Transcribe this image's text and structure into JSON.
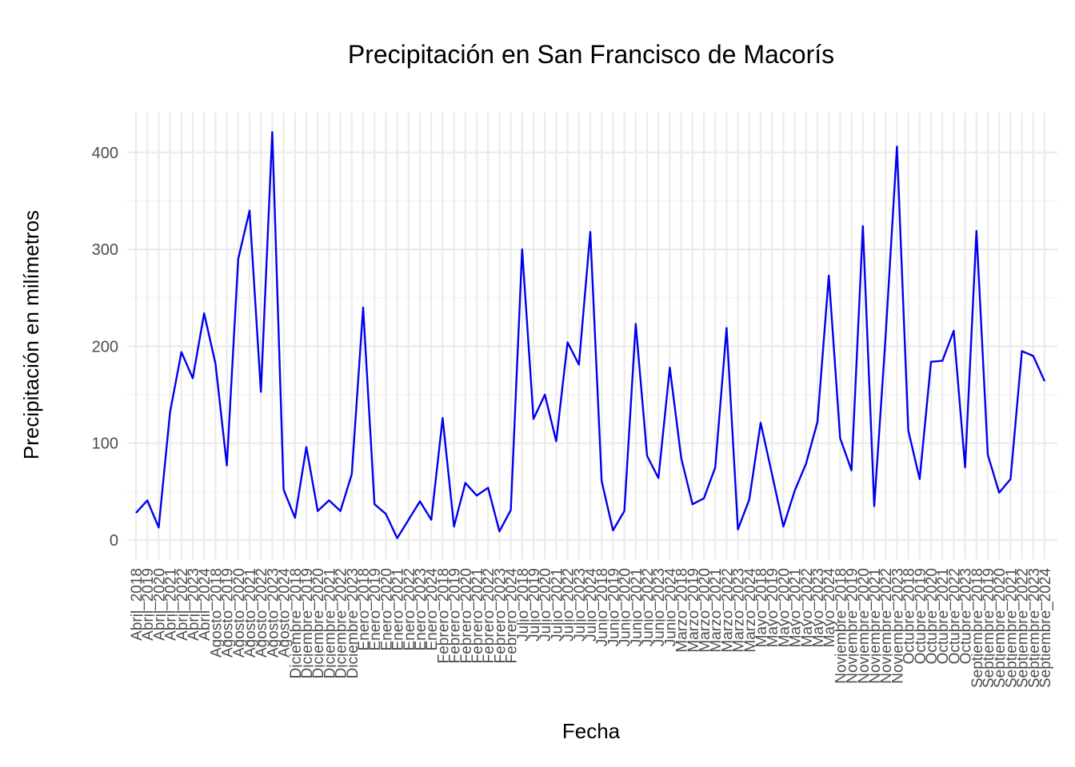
{
  "chart_data": {
    "type": "line",
    "title": "Precipitación en San Francisco de Macorís",
    "xlabel": "Fecha",
    "ylabel": "Precipitación en milímetros",
    "ylim": [
      -10,
      440
    ],
    "yticks": [
      0,
      100,
      200,
      300,
      400
    ],
    "grid": true,
    "legend": "none",
    "line_color": "#0000ee",
    "categories": [
      "Abril_2018",
      "Abril_2019",
      "Abril_2020",
      "Abril_2021",
      "Abril_2022",
      "Abril_2023",
      "Abril_2024",
      "Agosto_2018",
      "Agosto_2019",
      "Agosto_2020",
      "Agosto_2021",
      "Agosto_2022",
      "Agosto_2023",
      "Agosto_2024",
      "Diciembre_2018",
      "Diciembre_2019",
      "Diciembre_2020",
      "Diciembre_2021",
      "Diciembre_2022",
      "Diciembre_2023",
      "Enero_2018",
      "Enero_2019",
      "Enero_2020",
      "Enero_2021",
      "Enero_2022",
      "Enero_2023",
      "Enero_2024",
      "Febrero_2018",
      "Febrero_2019",
      "Febrero_2020",
      "Febrero_2021",
      "Febrero_2022",
      "Febrero_2023",
      "Febrero_2024",
      "Julio_2018",
      "Julio_2019",
      "Julio_2020",
      "Julio_2021",
      "Julio_2022",
      "Julio_2023",
      "Julio_2024",
      "Junio_2018",
      "Junio_2019",
      "Junio_2020",
      "Junio_2021",
      "Junio_2022",
      "Junio_2023",
      "Junio_2024",
      "Marzo_2018",
      "Marzo_2019",
      "Marzo_2020",
      "Marzo_2021",
      "Marzo_2022",
      "Marzo_2023",
      "Marzo_2024",
      "Mayo_2018",
      "Mayo_2019",
      "Mayo_2020",
      "Mayo_2021",
      "Mayo_2022",
      "Mayo_2023",
      "Mayo_2024",
      "Noviembre_2018",
      "Noviembre_2019",
      "Noviembre_2020",
      "Noviembre_2021",
      "Noviembre_2022",
      "Noviembre_2023",
      "Octubre_2018",
      "Octubre_2019",
      "Octubre_2020",
      "Octubre_2021",
      "Octubre_2022",
      "Octubre_2023",
      "Septiembre_2018",
      "Septiembre_2019",
      "Septiembre_2020",
      "Septiembre_2021",
      "Septiembre_2022",
      "Septiembre_2023",
      "Septiembre_2024"
    ],
    "series": [
      {
        "values": [
          28,
          41,
          13,
          132,
          194,
          167,
          234,
          182,
          77,
          290,
          340,
          153,
          421,
          52,
          23,
          96,
          30,
          41,
          30,
          68,
          240,
          37,
          27,
          2,
          21,
          40,
          21,
          126,
          14,
          59,
          46,
          54,
          9,
          31,
          300,
          125,
          150,
          102,
          204,
          181,
          318,
          61,
          10,
          30,
          223,
          87,
          64,
          178,
          85,
          37,
          43,
          75,
          219,
          11,
          42,
          121,
          68,
          14,
          51,
          79,
          122,
          273,
          105,
          72,
          324,
          35,
          210,
          406,
          113,
          63,
          184,
          185,
          216,
          75,
          319,
          88,
          49,
          63,
          195,
          190,
          164
        ]
      }
    ]
  }
}
